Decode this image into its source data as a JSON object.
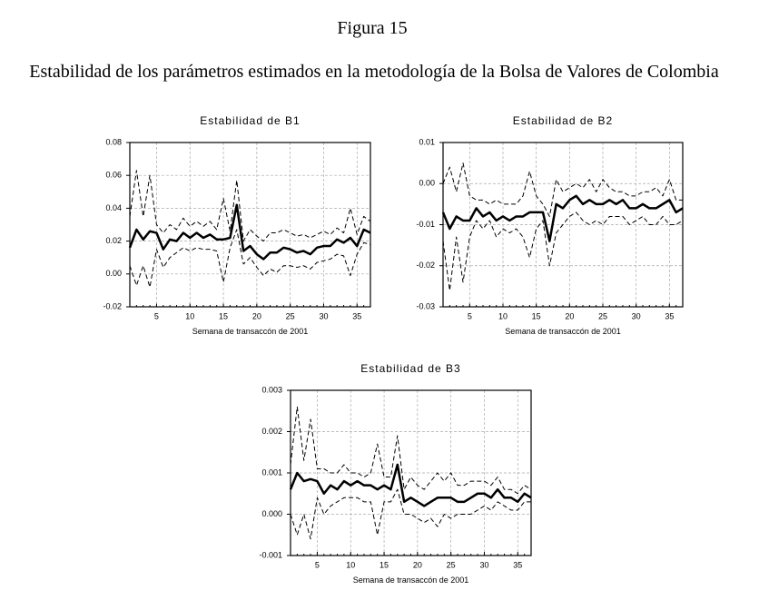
{
  "figure": {
    "label": "Figura 15",
    "title": "Estabilidad de los parámetros estimados en la metodología de la Bolsa de Valores de Colombia"
  },
  "chart_data": [
    {
      "type": "line",
      "title": "Estabilidad de B1",
      "x_label": "Semana de transaccón de 2001",
      "x": [
        1,
        2,
        3,
        4,
        5,
        6,
        7,
        8,
        9,
        10,
        11,
        12,
        13,
        14,
        15,
        16,
        17,
        18,
        19,
        20,
        21,
        22,
        23,
        24,
        25,
        26,
        27,
        28,
        29,
        30,
        31,
        32,
        33,
        34,
        35,
        36,
        37
      ],
      "xlim": [
        1,
        37
      ],
      "xticks": [
        5,
        10,
        15,
        20,
        25,
        30,
        35
      ],
      "ylim": [
        -0.02,
        0.08
      ],
      "yticks": [
        {
          "value": -0.02,
          "label": "-0.02"
        },
        {
          "value": 0,
          "label": "0.00"
        },
        0.02,
        0.04,
        0.06,
        0.08
      ],
      "grid": true,
      "series": [
        {
          "color": "#000000",
          "line_style": "solid",
          "line_width": 2.5,
          "values": [
            0.016,
            0.027,
            0.021,
            0.026,
            0.025,
            0.015,
            0.021,
            0.02,
            0.025,
            0.022,
            0.025,
            0.022,
            0.024,
            0.021,
            0.021,
            0.022,
            0.042,
            0.014,
            0.017,
            0.012,
            0.009,
            0.013,
            0.013,
            0.016,
            0.015,
            0.013,
            0.014,
            0.012,
            0.016,
            0.017,
            0.017,
            0.021,
            0.019,
            0.022,
            0.017,
            0.027,
            0.025
          ]
        },
        {
          "color": "#000000",
          "line_style": "dashed",
          "line_width": 1,
          "values": [
            0.035,
            0.063,
            0.035,
            0.06,
            0.03,
            0.025,
            0.03,
            0.027,
            0.034,
            0.029,
            0.032,
            0.029,
            0.032,
            0.027,
            0.046,
            0.026,
            0.057,
            0.02,
            0.027,
            0.023,
            0.02,
            0.025,
            0.025,
            0.027,
            0.025,
            0.023,
            0.024,
            0.022,
            0.024,
            0.026,
            0.024,
            0.028,
            0.025,
            0.04,
            0.024,
            0.035,
            0.032
          ]
        },
        {
          "color": "#000000",
          "line_style": "dashed",
          "line_width": 1,
          "values": [
            0.005,
            -0.007,
            0.005,
            -0.008,
            0.015,
            0.004,
            0.01,
            0.013,
            0.016,
            0.014,
            0.016,
            0.015,
            0.015,
            0.014,
            -0.005,
            0.016,
            0.027,
            0.006,
            0.01,
            0.004,
            -0.001,
            0.003,
            0.001,
            0.005,
            0.005,
            0.004,
            0.005,
            0.003,
            0.007,
            0.008,
            0.009,
            0.012,
            0.011,
            -0.001,
            0.012,
            0.019,
            0.018
          ]
        }
      ]
    },
    {
      "type": "line",
      "title": "Estabilidad de B2",
      "x_label": "Semana de transaccón de 2001",
      "x": [
        1,
        2,
        3,
        4,
        5,
        6,
        7,
        8,
        9,
        10,
        11,
        12,
        13,
        14,
        15,
        16,
        17,
        18,
        19,
        20,
        21,
        22,
        23,
        24,
        25,
        26,
        27,
        28,
        29,
        30,
        31,
        32,
        33,
        34,
        35,
        36,
        37
      ],
      "xlim": [
        1,
        37
      ],
      "xticks": [
        5,
        10,
        15,
        20,
        25,
        30,
        35
      ],
      "ylim": [
        -0.03,
        0.01
      ],
      "yticks": [
        -0.03,
        -0.02,
        -0.01,
        {
          "value": 0,
          "label": "0.00"
        },
        0.01
      ],
      "grid": true,
      "series": [
        {
          "color": "#000000",
          "line_style": "solid",
          "line_width": 2.5,
          "values": [
            -0.007,
            -0.011,
            -0.008,
            -0.009,
            -0.009,
            -0.006,
            -0.008,
            -0.007,
            -0.009,
            -0.008,
            -0.009,
            -0.008,
            -0.008,
            -0.007,
            -0.007,
            -0.007,
            -0.014,
            -0.005,
            -0.006,
            -0.004,
            -0.003,
            -0.005,
            -0.004,
            -0.005,
            -0.005,
            -0.004,
            -0.005,
            -0.004,
            -0.006,
            -0.006,
            -0.005,
            -0.006,
            -0.006,
            -0.005,
            -0.004,
            -0.007,
            -0.006
          ]
        },
        {
          "color": "#000000",
          "line_style": "dashed",
          "line_width": 1,
          "values": [
            0.0,
            0.004,
            -0.002,
            0.005,
            -0.003,
            -0.004,
            -0.004,
            -0.005,
            -0.004,
            -0.005,
            -0.005,
            -0.005,
            -0.003,
            0.003,
            -0.003,
            -0.005,
            -0.008,
            0.001,
            -0.002,
            -0.001,
            0.0,
            -0.001,
            0.001,
            -0.002,
            0.001,
            -0.001,
            -0.002,
            -0.002,
            -0.003,
            -0.003,
            -0.002,
            -0.002,
            -0.001,
            -0.003,
            0.001,
            -0.004,
            -0.004
          ]
        },
        {
          "color": "#000000",
          "line_style": "dashed",
          "line_width": 1,
          "values": [
            -0.014,
            -0.026,
            -0.013,
            -0.024,
            -0.013,
            -0.009,
            -0.011,
            -0.009,
            -0.013,
            -0.011,
            -0.012,
            -0.011,
            -0.013,
            -0.018,
            -0.011,
            -0.009,
            -0.02,
            -0.012,
            -0.01,
            -0.008,
            -0.007,
            -0.009,
            -0.01,
            -0.009,
            -0.01,
            -0.008,
            -0.008,
            -0.008,
            -0.01,
            -0.009,
            -0.008,
            -0.01,
            -0.01,
            -0.008,
            -0.01,
            -0.01,
            -0.009
          ]
        }
      ]
    },
    {
      "type": "line",
      "title": "Estabilidad de B3",
      "x_label": "Semana de transaccón de 2001",
      "x": [
        1,
        2,
        3,
        4,
        5,
        6,
        7,
        8,
        9,
        10,
        11,
        12,
        13,
        14,
        15,
        16,
        17,
        18,
        19,
        20,
        21,
        22,
        23,
        24,
        25,
        26,
        27,
        28,
        29,
        30,
        31,
        32,
        33,
        34,
        35,
        36,
        37
      ],
      "xlim": [
        1,
        37
      ],
      "xticks": [
        5,
        10,
        15,
        20,
        25,
        30,
        35
      ],
      "ylim": [
        -0.001,
        0.003
      ],
      "yticks": [
        -0.001,
        {
          "value": 0,
          "label": "0.000"
        },
        0.001,
        0.002,
        0.003
      ],
      "grid": true,
      "series": [
        {
          "color": "#000000",
          "line_style": "solid",
          "line_width": 2.5,
          "values": [
            0.0006,
            0.001,
            0.0008,
            0.00085,
            0.0008,
            0.0005,
            0.0007,
            0.0006,
            0.0008,
            0.0007,
            0.0008,
            0.0007,
            0.0007,
            0.0006,
            0.0007,
            0.0006,
            0.0012,
            0.0003,
            0.0004,
            0.0003,
            0.0002,
            0.0003,
            0.0004,
            0.0004,
            0.0004,
            0.0003,
            0.0003,
            0.0004,
            0.0005,
            0.0005,
            0.0004,
            0.0006,
            0.0004,
            0.0004,
            0.0003,
            0.0005,
            0.0004
          ]
        },
        {
          "color": "#000000",
          "line_style": "dashed",
          "line_width": 1,
          "values": [
            0.0012,
            0.0026,
            0.0013,
            0.0023,
            0.0011,
            0.0011,
            0.001,
            0.001,
            0.0012,
            0.001,
            0.001,
            0.0009,
            0.001,
            0.0017,
            0.0009,
            0.0009,
            0.0019,
            0.0006,
            0.0009,
            0.0007,
            0.0006,
            0.0008,
            0.001,
            0.0008,
            0.001,
            0.0007,
            0.0007,
            0.0008,
            0.0008,
            0.0008,
            0.0007,
            0.0009,
            0.0006,
            0.0006,
            0.0005,
            0.0007,
            0.0006
          ]
        },
        {
          "color": "#000000",
          "line_style": "dashed",
          "line_width": 1,
          "values": [
            0.0,
            -0.0005,
            0.0,
            -0.0006,
            0.0004,
            0.0,
            0.0002,
            0.0003,
            0.0004,
            0.0004,
            0.0004,
            0.0003,
            0.0003,
            -0.0005,
            0.0003,
            0.0003,
            0.0006,
            0.0,
            0.0,
            -0.0001,
            -0.0002,
            -0.0001,
            -0.0003,
            0.0,
            -0.0001,
            0.0,
            0.0,
            0.0,
            0.0001,
            0.0002,
            0.0001,
            0.0003,
            0.0002,
            0.0001,
            0.0001,
            0.0003,
            0.0003
          ]
        }
      ]
    }
  ]
}
